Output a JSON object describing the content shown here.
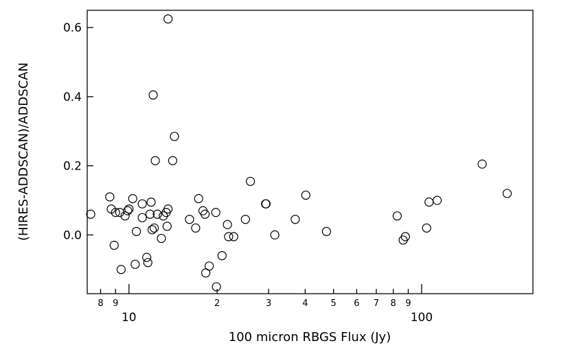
{
  "chart_data": {
    "type": "scatter",
    "title": "",
    "xlabel": "100 micron RBGS Flux (Jy)",
    "ylabel": "(HIRES-ADDSCAN)/ADDSCAN",
    "x_scale": "log",
    "xlim": [
      7.2,
      240
    ],
    "ylim": [
      -0.17,
      0.65
    ],
    "y_ticks": [
      0.0,
      0.2,
      0.4,
      0.6
    ],
    "y_tick_labels": [
      "0.0",
      "0.2",
      "0.4",
      "0.6"
    ],
    "x_major_ticks": [
      10,
      100
    ],
    "x_major_labels": [
      "10",
      "100"
    ],
    "x_minor_ticks": [
      8,
      9,
      20,
      30,
      40,
      50,
      60,
      70,
      80,
      90
    ],
    "x_minor_labels": [
      "8",
      "9",
      "2",
      "3",
      "4",
      "5",
      "6",
      "7",
      "8",
      "9"
    ],
    "marker": "open-circle",
    "grid": false,
    "points": [
      {
        "x": 7.4,
        "y": 0.06
      },
      {
        "x": 8.6,
        "y": 0.11
      },
      {
        "x": 8.7,
        "y": 0.075
      },
      {
        "x": 8.9,
        "y": -0.03
      },
      {
        "x": 9.0,
        "y": 0.065
      },
      {
        "x": 9.3,
        "y": 0.065
      },
      {
        "x": 9.4,
        "y": -0.1
      },
      {
        "x": 9.7,
        "y": 0.055
      },
      {
        "x": 9.9,
        "y": 0.07
      },
      {
        "x": 10.0,
        "y": 0.075
      },
      {
        "x": 10.3,
        "y": 0.105
      },
      {
        "x": 10.5,
        "y": -0.085
      },
      {
        "x": 10.6,
        "y": 0.01
      },
      {
        "x": 11.1,
        "y": 0.09
      },
      {
        "x": 11.1,
        "y": 0.05
      },
      {
        "x": 11.5,
        "y": -0.065
      },
      {
        "x": 11.6,
        "y": -0.08
      },
      {
        "x": 11.8,
        "y": 0.06
      },
      {
        "x": 11.9,
        "y": 0.095
      },
      {
        "x": 12.0,
        "y": 0.015
      },
      {
        "x": 12.1,
        "y": 0.405
      },
      {
        "x": 12.2,
        "y": 0.02
      },
      {
        "x": 12.3,
        "y": 0.215
      },
      {
        "x": 12.5,
        "y": 0.06
      },
      {
        "x": 12.9,
        "y": -0.01
      },
      {
        "x": 13.1,
        "y": 0.055
      },
      {
        "x": 13.4,
        "y": 0.065
      },
      {
        "x": 13.5,
        "y": 0.025
      },
      {
        "x": 13.6,
        "y": 0.075
      },
      {
        "x": 13.6,
        "y": 0.625
      },
      {
        "x": 14.1,
        "y": 0.215
      },
      {
        "x": 14.3,
        "y": 0.285
      },
      {
        "x": 16.1,
        "y": 0.045
      },
      {
        "x": 16.9,
        "y": 0.02
      },
      {
        "x": 17.3,
        "y": 0.105
      },
      {
        "x": 17.9,
        "y": 0.07
      },
      {
        "x": 18.2,
        "y": 0.06
      },
      {
        "x": 18.3,
        "y": -0.11
      },
      {
        "x": 18.8,
        "y": -0.09
      },
      {
        "x": 19.8,
        "y": 0.065
      },
      {
        "x": 19.9,
        "y": -0.15
      },
      {
        "x": 20.8,
        "y": -0.06
      },
      {
        "x": 21.7,
        "y": 0.03
      },
      {
        "x": 21.9,
        "y": -0.005
      },
      {
        "x": 22.8,
        "y": -0.005
      },
      {
        "x": 25.0,
        "y": 0.045
      },
      {
        "x": 26.0,
        "y": 0.155
      },
      {
        "x": 29.3,
        "y": 0.09
      },
      {
        "x": 29.4,
        "y": 0.09
      },
      {
        "x": 31.5,
        "y": 0.0
      },
      {
        "x": 37.0,
        "y": 0.045
      },
      {
        "x": 40.2,
        "y": 0.115
      },
      {
        "x": 47.3,
        "y": 0.01
      },
      {
        "x": 82.5,
        "y": 0.055
      },
      {
        "x": 86.5,
        "y": -0.015
      },
      {
        "x": 88.0,
        "y": -0.005
      },
      {
        "x": 104.0,
        "y": 0.02
      },
      {
        "x": 106.0,
        "y": 0.095
      },
      {
        "x": 113.0,
        "y": 0.1
      },
      {
        "x": 161.0,
        "y": 0.205
      },
      {
        "x": 196.0,
        "y": 0.12
      }
    ]
  }
}
